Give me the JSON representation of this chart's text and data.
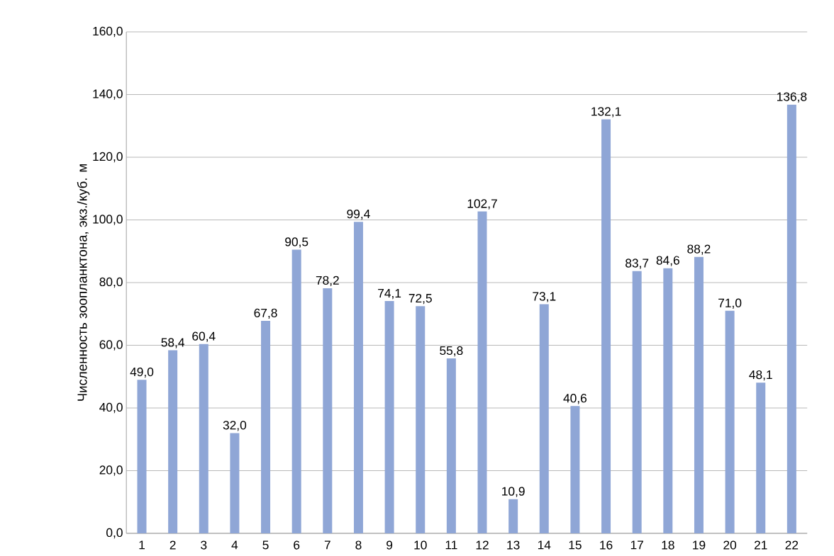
{
  "chart_data": {
    "type": "bar",
    "ylabel": "Численность зоопланктона, экз./куб. м",
    "categories": [
      "1",
      "2",
      "3",
      "4",
      "5",
      "6",
      "7",
      "8",
      "9",
      "10",
      "11",
      "12",
      "13",
      "14",
      "15",
      "16",
      "17",
      "18",
      "19",
      "20",
      "21",
      "22"
    ],
    "values": [
      49.0,
      58.4,
      60.4,
      32.0,
      67.8,
      90.5,
      78.2,
      99.4,
      74.1,
      72.5,
      55.8,
      102.7,
      10.9,
      73.1,
      40.6,
      132.1,
      83.7,
      84.6,
      88.2,
      71.0,
      48.1,
      136.8
    ],
    "value_labels": [
      "49,0",
      "58,4",
      "60,4",
      "32,0",
      "67,8",
      "90,5",
      "78,2",
      "99,4",
      "74,1",
      "72,5",
      "55,8",
      "102,7",
      "10,9",
      "73,1",
      "40,6",
      "132,1",
      "83,7",
      "84,6",
      "88,2",
      "71,0",
      "48,1",
      "136,8"
    ],
    "color": "#8fa6d6",
    "ylim": [
      0,
      160
    ],
    "yticks": [
      {
        "value": 0,
        "label": "0,0"
      },
      {
        "value": 20,
        "label": "20,0"
      },
      {
        "value": 40,
        "label": "40,0"
      },
      {
        "value": 60,
        "label": "60,0"
      },
      {
        "value": 80,
        "label": "80,0"
      },
      {
        "value": 100,
        "label": "100,0"
      },
      {
        "value": 120,
        "label": "120,0"
      },
      {
        "value": 140,
        "label": "140,0"
      },
      {
        "value": 160,
        "label": "160,0"
      }
    ],
    "grid": "y"
  }
}
